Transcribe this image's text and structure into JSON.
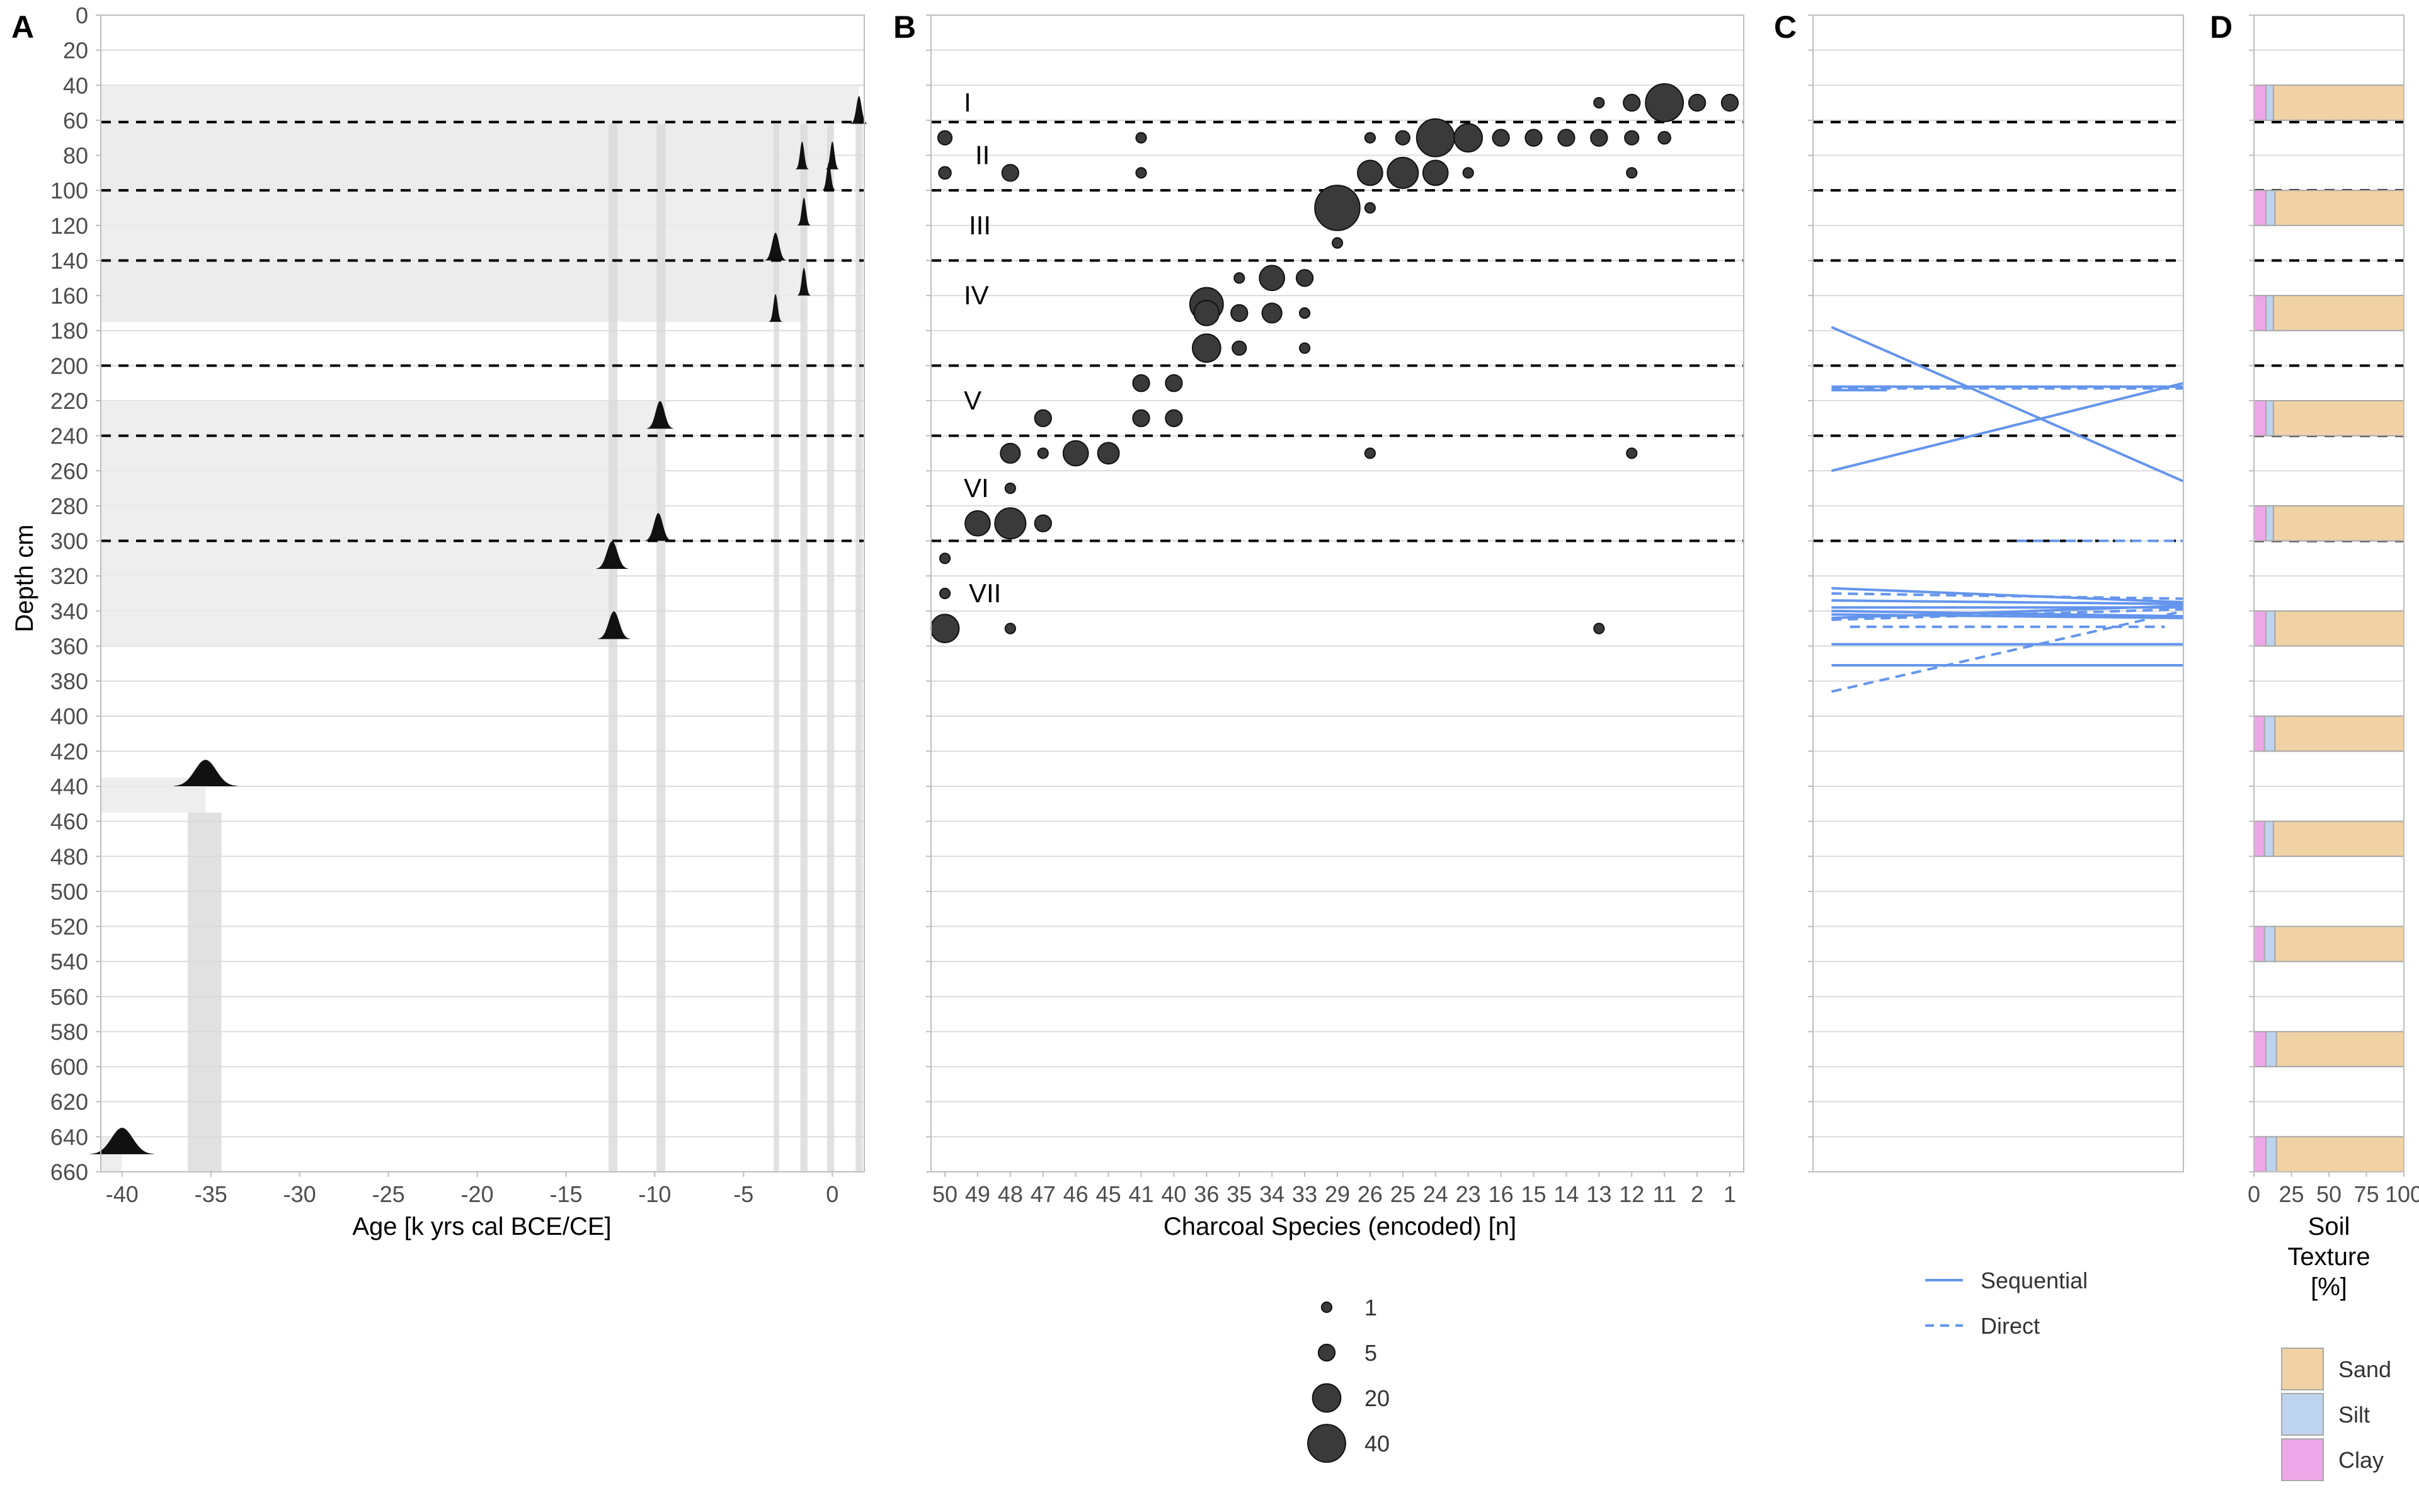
{
  "figure": {
    "panel_letters": [
      "A",
      "B",
      "C",
      "D"
    ],
    "y_axis_label": "Depth cm",
    "depth_ticks": [
      0,
      20,
      40,
      60,
      80,
      100,
      120,
      140,
      160,
      180,
      200,
      220,
      240,
      260,
      280,
      300,
      320,
      340,
      360,
      380,
      400,
      420,
      440,
      460,
      480,
      500,
      520,
      540,
      560,
      580,
      600,
      620,
      640,
      660
    ],
    "ylim": [
      0,
      660
    ],
    "unit_boundaries_depth": [
      61,
      100,
      140,
      200,
      240,
      300
    ],
    "unit_labels": [
      {
        "label": "I",
        "depth": 50
      },
      {
        "label": "II",
        "depth": 80
      },
      {
        "label": "III",
        "depth": 120
      },
      {
        "label": "IV",
        "depth": 160
      },
      {
        "label": "V",
        "depth": 220
      },
      {
        "label": "VI",
        "depth": 270
      },
      {
        "label": "VII",
        "depth": 330
      }
    ]
  },
  "chart_data": [
    {
      "panel": "A",
      "type": "area",
      "xlabel": "Age [k yrs cal BCE/CE]",
      "xlim": [
        -41.2,
        1.8
      ],
      "x_ticks": [
        -40,
        -35,
        -30,
        -25,
        -20,
        -15,
        -10,
        -5,
        0
      ],
      "depth_bands": [
        {
          "top": 40,
          "bottom": 62,
          "age": 1.5
        },
        {
          "top": 62,
          "bottom": 100,
          "age": 0
        },
        {
          "top": 62,
          "bottom": 100,
          "age": -1.6
        },
        {
          "top": 100,
          "bottom": 140,
          "age": -1.5
        },
        {
          "top": 140,
          "bottom": 175,
          "age": -1.6
        },
        {
          "top": 140,
          "bottom": 175,
          "age": -3.2
        },
        {
          "top": 220,
          "bottom": 300,
          "age": -9.6
        },
        {
          "top": 300,
          "bottom": 360,
          "age": -12.3
        },
        {
          "top": 435,
          "bottom": 455,
          "age": -35.3
        },
        {
          "top": 640,
          "bottom": 660,
          "age": -40.0
        }
      ],
      "age_bands": [
        {
          "from": -36.3,
          "to": -34.4
        },
        {
          "from": -12.6,
          "to": -12.1
        },
        {
          "from": -9.9,
          "to": -9.4
        },
        {
          "from": -3.3,
          "to": -3.0
        },
        {
          "from": -1.8,
          "to": -1.4
        },
        {
          "from": -0.3,
          "to": 0.1
        },
        {
          "from": 1.3,
          "to": 1.7
        }
      ],
      "age_distributions": [
        {
          "depth": 62,
          "age": 1.5,
          "spread": 0.15
        },
        {
          "depth": 88,
          "age": -1.7,
          "spread": 0.12
        },
        {
          "depth": 88,
          "age": 0.0,
          "spread": 0.12
        },
        {
          "depth": 100,
          "age": -0.2,
          "spread": 0.12
        },
        {
          "depth": 120,
          "age": -1.6,
          "spread": 0.12
        },
        {
          "depth": 140,
          "age": -3.2,
          "spread": 0.2
        },
        {
          "depth": 160,
          "age": -1.6,
          "spread": 0.12
        },
        {
          "depth": 175,
          "age": -3.2,
          "spread": 0.12
        },
        {
          "depth": 236,
          "age": -9.7,
          "spread": 0.25
        },
        {
          "depth": 300,
          "age": -9.8,
          "spread": 0.25
        },
        {
          "depth": 316,
          "age": -12.4,
          "spread": 0.3
        },
        {
          "depth": 356,
          "age": -12.3,
          "spread": 0.3
        },
        {
          "depth": 440,
          "age": -35.3,
          "spread": 0.6
        },
        {
          "depth": 650,
          "age": -40.0,
          "spread": 0.6
        }
      ]
    },
    {
      "panel": "B",
      "type": "scatter",
      "xlabel": "Charcoal Species (encoded) [n]",
      "categories": [
        "50",
        "49",
        "48",
        "47",
        "46",
        "45",
        "41",
        "40",
        "36",
        "35",
        "34",
        "33",
        "29",
        "26",
        "25",
        "24",
        "23",
        "16",
        "15",
        "14",
        "13",
        "12",
        "11",
        "2",
        "1"
      ],
      "points": [
        {
          "cat": "13",
          "depth": 50,
          "n": 1
        },
        {
          "cat": "12",
          "depth": 50,
          "n": 5
        },
        {
          "cat": "11",
          "depth": 50,
          "n": 40
        },
        {
          "cat": "2",
          "depth": 50,
          "n": 5
        },
        {
          "cat": "1",
          "depth": 50,
          "n": 5
        },
        {
          "cat": "50",
          "depth": 70,
          "n": 3
        },
        {
          "cat": "41",
          "depth": 70,
          "n": 1
        },
        {
          "cat": "26",
          "depth": 70,
          "n": 1
        },
        {
          "cat": "25",
          "depth": 70,
          "n": 3
        },
        {
          "cat": "24",
          "depth": 70,
          "n": 40
        },
        {
          "cat": "23",
          "depth": 70,
          "n": 20
        },
        {
          "cat": "16",
          "depth": 70,
          "n": 5
        },
        {
          "cat": "15",
          "depth": 70,
          "n": 5
        },
        {
          "cat": "14",
          "depth": 70,
          "n": 5
        },
        {
          "cat": "13",
          "depth": 70,
          "n": 5
        },
        {
          "cat": "12",
          "depth": 70,
          "n": 3
        },
        {
          "cat": "11",
          "depth": 70,
          "n": 2
        },
        {
          "cat": "50",
          "depth": 90,
          "n": 2
        },
        {
          "cat": "48",
          "depth": 90,
          "n": 5
        },
        {
          "cat": "41",
          "depth": 90,
          "n": 1
        },
        {
          "cat": "26",
          "depth": 90,
          "n": 15
        },
        {
          "cat": "25",
          "depth": 90,
          "n": 25
        },
        {
          "cat": "24",
          "depth": 90,
          "n": 15
        },
        {
          "cat": "23",
          "depth": 90,
          "n": 1
        },
        {
          "cat": "12",
          "depth": 90,
          "n": 1
        },
        {
          "cat": "29",
          "depth": 110,
          "n": 60
        },
        {
          "cat": "26",
          "depth": 110,
          "n": 1
        },
        {
          "cat": "29",
          "depth": 130,
          "n": 1
        },
        {
          "cat": "35",
          "depth": 150,
          "n": 1
        },
        {
          "cat": "34",
          "depth": 150,
          "n": 15
        },
        {
          "cat": "33",
          "depth": 150,
          "n": 5
        },
        {
          "cat": "36",
          "depth": 165,
          "n": 30
        },
        {
          "cat": "36",
          "depth": 170,
          "n": 15
        },
        {
          "cat": "35",
          "depth": 170,
          "n": 5
        },
        {
          "cat": "34",
          "depth": 170,
          "n": 8
        },
        {
          "cat": "33",
          "depth": 170,
          "n": 1
        },
        {
          "cat": "36",
          "depth": 190,
          "n": 20
        },
        {
          "cat": "35",
          "depth": 190,
          "n": 3
        },
        {
          "cat": "33",
          "depth": 190,
          "n": 1
        },
        {
          "cat": "41",
          "depth": 210,
          "n": 5
        },
        {
          "cat": "40",
          "depth": 210,
          "n": 5
        },
        {
          "cat": "47",
          "depth": 230,
          "n": 5
        },
        {
          "cat": "41",
          "depth": 230,
          "n": 5
        },
        {
          "cat": "40",
          "depth": 230,
          "n": 5
        },
        {
          "cat": "48",
          "depth": 250,
          "n": 8
        },
        {
          "cat": "47",
          "depth": 250,
          "n": 1
        },
        {
          "cat": "46",
          "depth": 250,
          "n": 15
        },
        {
          "cat": "45",
          "depth": 250,
          "n": 10
        },
        {
          "cat": "26",
          "depth": 250,
          "n": 1
        },
        {
          "cat": "12",
          "depth": 250,
          "n": 1
        },
        {
          "cat": "48",
          "depth": 270,
          "n": 1
        },
        {
          "cat": "49",
          "depth": 290,
          "n": 15
        },
        {
          "cat": "48",
          "depth": 290,
          "n": 25
        },
        {
          "cat": "47",
          "depth": 290,
          "n": 5
        },
        {
          "cat": "50",
          "depth": 310,
          "n": 1
        },
        {
          "cat": "50",
          "depth": 330,
          "n": 1
        },
        {
          "cat": "50",
          "depth": 350,
          "n": 20
        },
        {
          "cat": "48",
          "depth": 350,
          "n": 1
        },
        {
          "cat": "13",
          "depth": 350,
          "n": 1
        }
      ],
      "size_legend": {
        "values": [
          1,
          5,
          20,
          40
        ],
        "labels": [
          "1",
          "5",
          "20",
          "40"
        ]
      }
    },
    {
      "panel": "C",
      "type": "line",
      "xlim": [
        0,
        1
      ],
      "series": [
        {
          "linetype": "solid",
          "segments": [
            [
              0.05,
              178,
              1.0,
              266
            ],
            [
              0.05,
              260,
              1.0,
              210
            ],
            [
              0.05,
              212,
              1.0,
              212
            ],
            [
              0.05,
              214,
              0.2,
              214
            ],
            [
              0.05,
              327,
              1.0,
              335
            ],
            [
              0.05,
              334,
              1.0,
              336
            ],
            [
              0.05,
              338,
              1.0,
              338
            ],
            [
              0.05,
              340,
              1.0,
              343
            ],
            [
              0.05,
              342,
              1.0,
              344
            ],
            [
              0.05,
              344,
              1.0,
              337
            ],
            [
              0.05,
              359,
              1.0,
              359
            ],
            [
              0.05,
              371,
              1.0,
              371
            ]
          ]
        },
        {
          "linetype": "dashed",
          "segments": [
            [
              0.05,
              213,
              1.0,
              213
            ],
            [
              0.55,
              300,
              1.0,
              300
            ],
            [
              0.05,
              330,
              1.0,
              333
            ],
            [
              0.05,
              345,
              1.0,
              339
            ],
            [
              0.1,
              349,
              0.95,
              349
            ],
            [
              0.05,
              386,
              1.0,
              340
            ]
          ]
        }
      ],
      "legend": [
        {
          "label": "Sequential",
          "linetype": "solid"
        },
        {
          "label": "Direct",
          "linetype": "dashed"
        }
      ],
      "color": "#6495ED"
    },
    {
      "panel": "D",
      "type": "bar",
      "xlabel": "Soil\nTexture\n[%]",
      "xlabel_lines": [
        "Soil",
        "Texture",
        "[%]"
      ],
      "xlim": [
        0,
        100
      ],
      "x_ticks": [
        "0",
        "25",
        "50",
        "75",
        "100"
      ],
      "categories_depth": [
        [
          40,
          60
        ],
        [
          100,
          120
        ],
        [
          160,
          180
        ],
        [
          220,
          240
        ],
        [
          280,
          300
        ],
        [
          340,
          360
        ],
        [
          400,
          420
        ],
        [
          460,
          480
        ],
        [
          520,
          540
        ],
        [
          580,
          600
        ],
        [
          640,
          660
        ]
      ],
      "series": [
        {
          "name": "Clay",
          "values": [
            8,
            8,
            8,
            8,
            8,
            8,
            7,
            7,
            7,
            8,
            8
          ]
        },
        {
          "name": "Silt",
          "values": [
            5,
            6,
            5,
            5,
            5,
            6,
            7,
            6,
            7,
            7,
            7
          ]
        },
        {
          "name": "Sand",
          "values": [
            87,
            86,
            87,
            87,
            87,
            86,
            86,
            87,
            86,
            85,
            85
          ]
        }
      ],
      "legend_order": [
        "Sand",
        "Silt",
        "Clay"
      ],
      "colors": {
        "Clay": "#EDA7E9",
        "Silt": "#BDD3EF",
        "Sand": "#F0D2A5"
      }
    }
  ],
  "colors": {
    "grid": "#DCDCDC",
    "panel_border": "#BEBEBE",
    "band": "#EBEBEB",
    "band_dark": "#D9D9D9",
    "point_fill": "#3A3A3A",
    "line_blue": "#6495ED",
    "text": "#333333",
    "tick_text": "#4D4D4D"
  }
}
